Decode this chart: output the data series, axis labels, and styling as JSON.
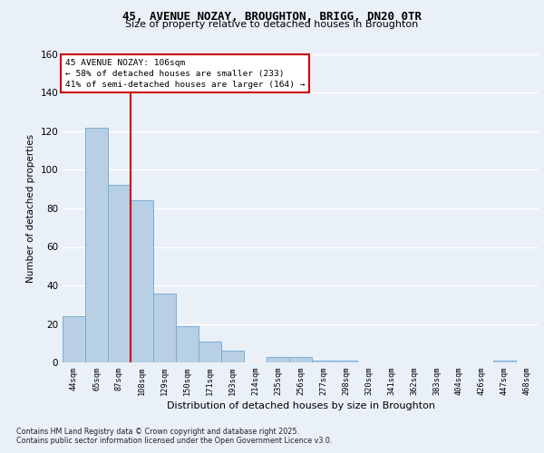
{
  "title1": "45, AVENUE NOZAY, BROUGHTON, BRIGG, DN20 0TR",
  "title2": "Size of property relative to detached houses in Broughton",
  "xlabel": "Distribution of detached houses by size in Broughton",
  "ylabel": "Number of detached properties",
  "categories": [
    "44sqm",
    "65sqm",
    "87sqm",
    "108sqm",
    "129sqm",
    "150sqm",
    "171sqm",
    "193sqm",
    "214sqm",
    "235sqm",
    "256sqm",
    "277sqm",
    "298sqm",
    "320sqm",
    "341sqm",
    "362sqm",
    "383sqm",
    "404sqm",
    "426sqm",
    "447sqm",
    "468sqm"
  ],
  "values": [
    24,
    122,
    92,
    84,
    36,
    19,
    11,
    6,
    0,
    3,
    3,
    1,
    1,
    0,
    0,
    0,
    0,
    0,
    0,
    1,
    0
  ],
  "bar_color": "#b8cfe4",
  "bar_edge_color": "#7aadd4",
  "vline_x": 2.5,
  "vline_color": "#cc0000",
  "annotation_text": "45 AVENUE NOZAY: 106sqm\n← 58% of detached houses are smaller (233)\n41% of semi-detached houses are larger (164) →",
  "annotation_box_color": "#ffffff",
  "annotation_box_edge": "#cc0000",
  "ylim": [
    0,
    160
  ],
  "yticks": [
    0,
    20,
    40,
    60,
    80,
    100,
    120,
    140,
    160
  ],
  "bg_color": "#eaf0f8",
  "plot_bg_color": "#eaf0f8",
  "grid_color": "#ffffff",
  "footer1": "Contains HM Land Registry data © Crown copyright and database right 2025.",
  "footer2": "Contains public sector information licensed under the Open Government Licence v3.0."
}
